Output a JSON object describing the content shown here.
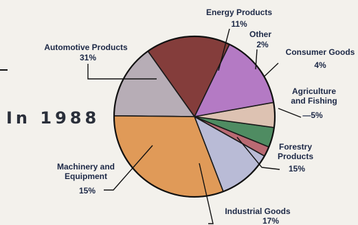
{
  "header": {
    "year_label": "In 1988"
  },
  "chart_data": {
    "type": "pie",
    "title": "",
    "slices": [
      {
        "label_lines": [
          "Energy Products"
        ],
        "pct_label": "11%",
        "value": 11,
        "color": "#b9bbd6"
      },
      {
        "label_lines": [
          "Other"
        ],
        "pct_label": "2%",
        "value": 2,
        "color": "#b96a73"
      },
      {
        "label_lines": [
          "Consumer Goods"
        ],
        "pct_label": "4%",
        "value": 4,
        "color": "#4f8c62"
      },
      {
        "label_lines": [
          "Agriculture",
          "and Fishing"
        ],
        "pct_label": "—5%",
        "value": 5,
        "color": "#ddc2b2"
      },
      {
        "label_lines": [
          "Forestry",
          "Products"
        ],
        "pct_label": "15%",
        "value": 15,
        "color": "#b47ac4"
      },
      {
        "label_lines": [
          "Industrial Goods"
        ],
        "pct_label": "17%",
        "value": 17,
        "color": "#843d3b"
      },
      {
        "label_lines": [
          "Machinery and",
          "Equipment"
        ],
        "pct_label": "15%",
        "value": 15,
        "color": "#b7adb6"
      },
      {
        "label_lines": [
          "Automotive Products"
        ],
        "pct_label": "31%",
        "value": 31,
        "color": "#e09a58"
      }
    ]
  }
}
